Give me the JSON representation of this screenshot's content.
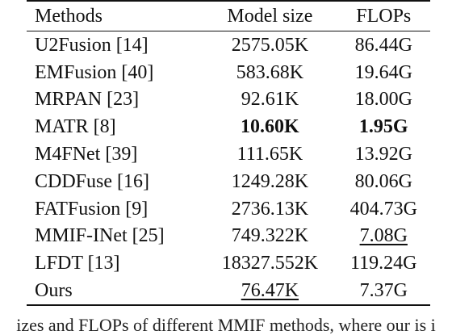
{
  "table": {
    "headers": [
      "Methods",
      "Model size",
      "FLOPs"
    ],
    "rows": [
      {
        "method": "U2Fusion [14]",
        "size": "2575.05K",
        "flops": "86.44G"
      },
      {
        "method": "EMFusion [40]",
        "size": "583.68K",
        "flops": "19.64G"
      },
      {
        "method": "MRPAN [23]",
        "size": "92.61K",
        "flops": "18.00G"
      },
      {
        "method": "MATR [8]",
        "size": "10.60K",
        "flops": "1.95G"
      },
      {
        "method": "M4FNet [39]",
        "size": "111.65K",
        "flops": "13.92G"
      },
      {
        "method": "CDDFuse [16]",
        "size": "1249.28K",
        "flops": "80.06G"
      },
      {
        "method": "FATFusion [9]",
        "size": "2736.13K",
        "flops": "404.73G"
      },
      {
        "method": "MMIF-INet [25]",
        "size": "749.322K",
        "flops": "7.08G"
      },
      {
        "method": "LFDT [13]",
        "size": "18327.552K",
        "flops": "119.24G"
      },
      {
        "method": "Ours",
        "size": "76.47K",
        "flops": "7.37G"
      }
    ]
  },
  "caption": "izes and FLOPs of different MMIF methods, where our is i"
}
